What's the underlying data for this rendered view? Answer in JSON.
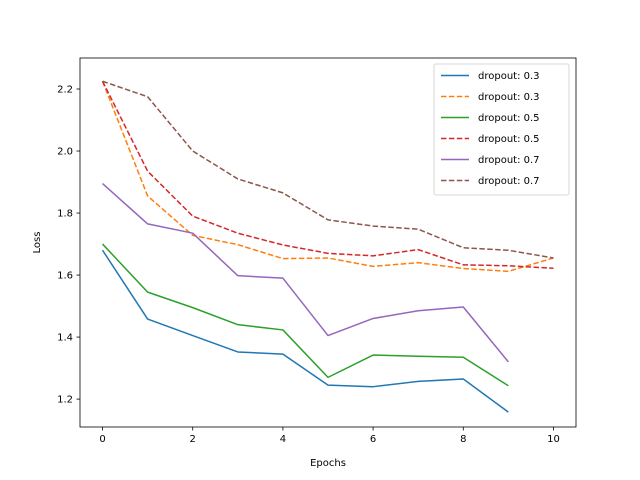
{
  "chart_data": {
    "type": "line",
    "title": "",
    "xlabel": "Epochs",
    "ylabel": "Loss",
    "xlim": [
      -0.5,
      10.5
    ],
    "ylim": [
      1.11,
      2.3
    ],
    "xticks": [
      0,
      2,
      4,
      6,
      8,
      10
    ],
    "yticks": [
      1.2,
      1.4,
      1.6,
      1.8,
      2.0,
      2.2
    ],
    "grid": false,
    "legend_position": "top-right",
    "series": [
      {
        "name": "dropout: 0.3",
        "color": "#1f77b4",
        "style": "solid",
        "x": [
          0,
          1,
          2,
          3,
          4,
          5,
          6,
          7,
          8,
          9
        ],
        "values": [
          1.68,
          1.458,
          1.405,
          1.352,
          1.345,
          1.245,
          1.24,
          1.257,
          1.265,
          1.158
        ]
      },
      {
        "name": "dropout: 0.3",
        "color": "#ff7f0e",
        "style": "dashed",
        "x": [
          0,
          1,
          2,
          3,
          4,
          5,
          6,
          7,
          8,
          9,
          10
        ],
        "values": [
          2.225,
          1.855,
          1.728,
          1.698,
          1.653,
          1.655,
          1.628,
          1.64,
          1.621,
          1.612,
          1.655
        ]
      },
      {
        "name": "dropout: 0.5",
        "color": "#2ca02c",
        "style": "solid",
        "x": [
          0,
          1,
          2,
          3,
          4,
          5,
          6,
          7,
          8,
          9
        ],
        "values": [
          1.7,
          1.545,
          1.495,
          1.44,
          1.423,
          1.27,
          1.342,
          1.338,
          1.335,
          1.243
        ]
      },
      {
        "name": "dropout: 0.5",
        "color": "#d62728",
        "style": "dashed",
        "x": [
          0,
          1,
          2,
          3,
          4,
          5,
          6,
          7,
          8,
          9,
          10
        ],
        "values": [
          2.225,
          1.935,
          1.79,
          1.735,
          1.697,
          1.67,
          1.662,
          1.682,
          1.633,
          1.63,
          1.622
        ]
      },
      {
        "name": "dropout: 0.7",
        "color": "#9467bd",
        "style": "solid",
        "x": [
          0,
          1,
          2,
          3,
          4,
          5,
          6,
          7,
          8,
          9
        ],
        "values": [
          1.895,
          1.765,
          1.735,
          1.598,
          1.59,
          1.405,
          1.46,
          1.485,
          1.497,
          1.32
        ]
      },
      {
        "name": "dropout: 0.7",
        "color": "#8c564b",
        "style": "dashed",
        "x": [
          0,
          1,
          2,
          3,
          4,
          5,
          6,
          7,
          8,
          9,
          10
        ],
        "values": [
          2.225,
          2.175,
          2.0,
          1.91,
          1.865,
          1.778,
          1.758,
          1.748,
          1.688,
          1.68,
          1.655
        ]
      }
    ]
  }
}
